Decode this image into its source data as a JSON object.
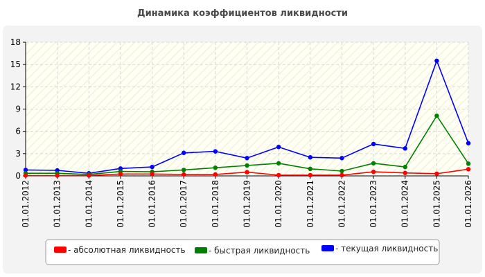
{
  "chart_data": {
    "type": "line",
    "title": "Динамика коэффициентов ликвидности",
    "xlabel": "",
    "ylabel": "",
    "ylim": [
      0,
      18
    ],
    "yticks": [
      0,
      3,
      6,
      9,
      12,
      15,
      18
    ],
    "categories": [
      "01.01.2012",
      "01.01.2013",
      "01.01.2014",
      "01.01.2015",
      "01.01.2016",
      "01.01.2017",
      "01.01.2018",
      "01.01.2019",
      "01.01.2020",
      "01.01.2021",
      "01.01.2022",
      "01.01.2023",
      "01.01.2024",
      "01.01.2025",
      "01.01.2026"
    ],
    "grid": true,
    "legend_position": "bottom",
    "series": [
      {
        "name": "- текущая ликвидность",
        "color": "#0000ff",
        "values": [
          0.8,
          0.75,
          0.35,
          1.0,
          1.2,
          3.1,
          3.3,
          2.4,
          3.9,
          2.5,
          2.4,
          4.3,
          3.7,
          15.5,
          4.4
        ]
      },
      {
        "name": "- быстрая ликвидность",
        "color": "#008000",
        "values": [
          0.35,
          0.35,
          0.2,
          0.6,
          0.55,
          0.8,
          1.1,
          1.4,
          1.7,
          0.95,
          0.65,
          1.7,
          1.2,
          8.1,
          1.65
        ]
      },
      {
        "name": "- абсолютная ликвидность",
        "color": "#ff0000",
        "values": [
          0.05,
          0.05,
          0.05,
          0.25,
          0.25,
          0.2,
          0.2,
          0.5,
          0.1,
          0.1,
          0.1,
          0.55,
          0.4,
          0.3,
          0.9
        ]
      }
    ],
    "legend_order": [
      "- абсолютная ликвидность",
      "- быстрая ликвидность",
      "- текущая ликвидность"
    ],
    "colors": {
      "panel_background": "#f3f3f3",
      "plot_background": "#fffff4",
      "grid": "#d7d7d7",
      "legend_background": "#ffffff",
      "legend_border": "#9a9a9a"
    }
  }
}
